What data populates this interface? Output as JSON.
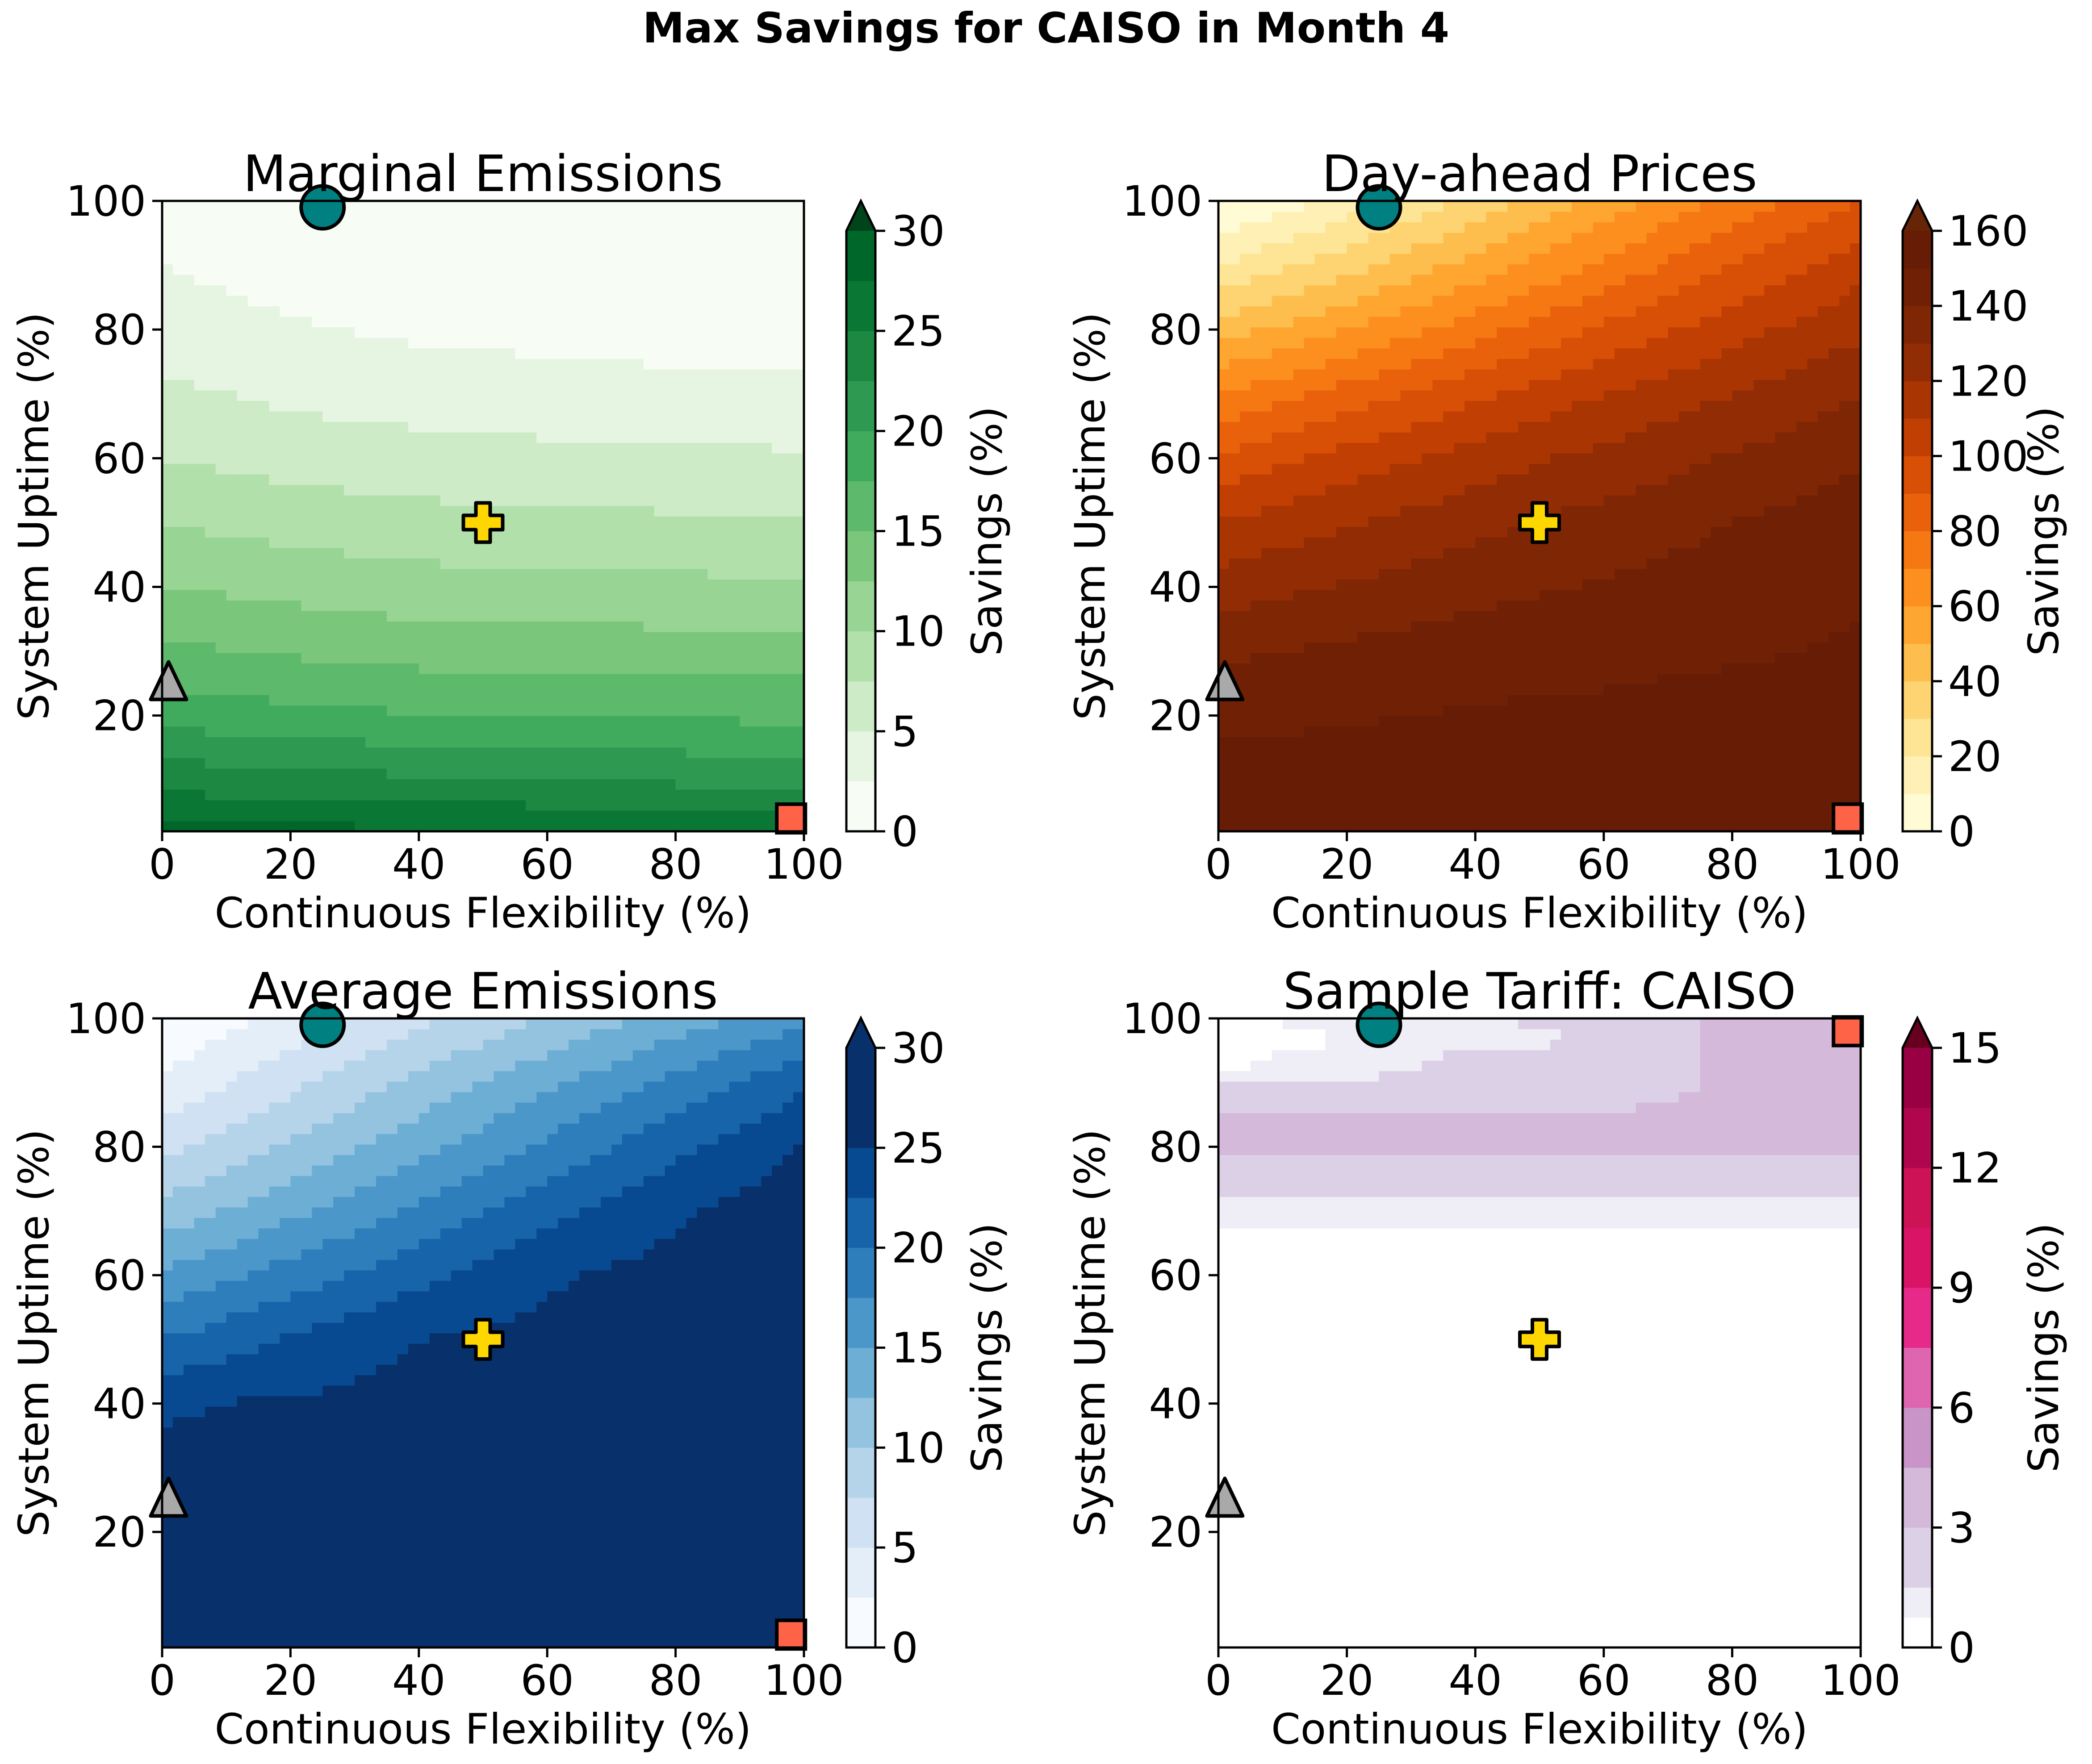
{
  "figure": {
    "title": "Max Savings for CAISO in Month 4"
  },
  "chart_data": [
    {
      "type": "heatmap",
      "title": "Marginal Emissions",
      "xlabel": "Continuous Flexibility (%)",
      "ylabel": "System Uptime (%)",
      "xlim": [
        0,
        100
      ],
      "ylim": [
        2,
        100
      ],
      "xticks": [
        "0",
        "20",
        "40",
        "60",
        "80",
        "100"
      ],
      "yticks": [
        "20",
        "40",
        "60",
        "80",
        "100"
      ],
      "x": [
        0,
        10,
        20,
        30,
        40,
        50,
        60,
        70,
        80,
        90,
        100
      ],
      "y": [
        2,
        10,
        20,
        30,
        40,
        50,
        60,
        70,
        80,
        90,
        100
      ],
      "z": [
        [
          28,
          28,
          28,
          28,
          27.6,
          27.6,
          27.5,
          27.3,
          27.2,
          27.1,
          27
        ],
        [
          24,
          23.7,
          23.4,
          23.1,
          22.9,
          22.7,
          22.5,
          22.3,
          22.1,
          21.9,
          21.6
        ],
        [
          19,
          18.6,
          18.2,
          17.9,
          17.7,
          17.5,
          17.4,
          17.3,
          17.2,
          17.1,
          17
        ],
        [
          15.5,
          15.1,
          14.7,
          14.3,
          14,
          13.9,
          13.8,
          13.7,
          13.6,
          13.5,
          13.5
        ],
        [
          12.5,
          12.1,
          11.7,
          11.3,
          11,
          10.8,
          10.7,
          10.7,
          10.6,
          10.5,
          10.5
        ],
        [
          10,
          9.5,
          9,
          8.7,
          8.4,
          8.2,
          8.1,
          8,
          7.9,
          7.8,
          7.8
        ],
        [
          7.5,
          7,
          6.5,
          6.2,
          6,
          5.8,
          5.7,
          5.6,
          5.5,
          5.4,
          5.3
        ],
        [
          5.5,
          5,
          4.5,
          4.1,
          3.9,
          3.7,
          3.5,
          3.4,
          3.3,
          3.2,
          3.1
        ],
        [
          4,
          3.4,
          2.8,
          2.4,
          2.1,
          1.9,
          1.8,
          1.6,
          1.5,
          1.5,
          1.5
        ],
        [
          2.5,
          1.9,
          1.3,
          0.9,
          0.6,
          0.4,
          0.3,
          0.2,
          0.1,
          0.1,
          0.1
        ],
        [
          1,
          0.5,
          0.1,
          0,
          0,
          0,
          0,
          0,
          0,
          0,
          0
        ]
      ],
      "levels": [
        0,
        2.5,
        5,
        7.5,
        10,
        12.5,
        15,
        17.5,
        20,
        22.5,
        25,
        27.5,
        30
      ],
      "colors": [
        "#f7fcf5",
        "#e6f5e1",
        "#cdebc6",
        "#b2e0ab",
        "#98d494",
        "#7ac67a",
        "#5db96b",
        "#40aa5d",
        "#2e9a51",
        "#1d8842",
        "#0b7734",
        "#00672b"
      ],
      "extend_color": "#00441b",
      "colorbar": {
        "label": "Savings (%)",
        "ticks": [
          "0",
          "5",
          "10",
          "15",
          "20",
          "25",
          "30"
        ],
        "range": [
          0,
          30
        ],
        "extend": "max"
      }
    },
    {
      "type": "heatmap",
      "title": "Day-ahead Prices",
      "xlabel": "Continuous Flexibility (%)",
      "ylabel": "System Uptime (%)",
      "xlim": [
        0,
        100
      ],
      "ylim": [
        2,
        100
      ],
      "xticks": [
        "0",
        "20",
        "40",
        "60",
        "80",
        "100"
      ],
      "yticks": [
        "20",
        "40",
        "60",
        "80",
        "100"
      ],
      "x": [
        0,
        10,
        20,
        30,
        40,
        50,
        60,
        70,
        80,
        90,
        100
      ],
      "y": [
        2,
        10,
        20,
        30,
        40,
        50,
        60,
        70,
        80,
        90,
        100
      ],
      "z": [
        [
          157,
          157,
          157,
          157,
          157,
          157,
          157,
          157,
          157,
          157,
          157
        ],
        [
          155,
          155,
          155,
          155,
          155,
          155,
          155,
          155,
          155,
          155,
          152
        ],
        [
          147,
          148,
          149,
          150,
          151,
          152,
          152,
          153,
          153,
          153,
          153
        ],
        [
          138,
          140,
          142,
          144,
          145,
          146,
          147,
          148,
          149,
          150,
          151
        ],
        [
          125,
          128,
          131,
          134,
          137,
          139,
          141,
          143,
          145,
          147,
          149
        ],
        [
          110,
          115,
          119,
          123,
          127,
          131,
          134,
          137,
          140,
          143,
          146
        ],
        [
          92,
          98,
          104,
          109,
          114,
          119,
          123,
          127,
          131,
          135,
          139
        ],
        [
          70,
          77,
          84,
          91,
          98,
          104,
          110,
          115,
          120,
          125,
          130
        ],
        [
          45,
          52,
          60,
          68,
          76,
          84,
          92,
          99,
          106,
          112,
          118
        ],
        [
          20,
          28,
          36,
          45,
          54,
          63,
          72,
          81,
          90,
          98,
          106
        ],
        [
          0,
          6,
          14,
          24,
          34,
          44,
          54,
          64,
          73,
          82,
          90
        ]
      ],
      "levels": [
        0,
        10,
        20,
        30,
        40,
        50,
        60,
        70,
        80,
        90,
        100,
        110,
        120,
        130,
        140,
        150,
        160
      ],
      "colors": [
        "#fffbd5",
        "#fff1b6",
        "#fee596",
        "#fed472",
        "#febe4d",
        "#fea630",
        "#fd8f1f",
        "#f67812",
        "#e9620b",
        "#d84f06",
        "#c23f03",
        "#a93503",
        "#922c04",
        "#7f2604",
        "#702005",
        "#661c05"
      ],
      "extend_color": "#662506",
      "colorbar": {
        "label": "Savings (%)",
        "ticks": [
          "0",
          "20",
          "40",
          "60",
          "80",
          "100",
          "120",
          "140",
          "160"
        ],
        "range": [
          0,
          160
        ],
        "extend": "max"
      }
    },
    {
      "type": "heatmap",
      "title": "Average Emissions",
      "xlabel": "Continuous Flexibility (%)",
      "ylabel": "System Uptime (%)",
      "xlim": [
        0,
        100
      ],
      "ylim": [
        2,
        100
      ],
      "xticks": [
        "0",
        "20",
        "40",
        "60",
        "80",
        "100"
      ],
      "yticks": [
        "20",
        "40",
        "60",
        "80",
        "100"
      ],
      "x": [
        0,
        10,
        20,
        30,
        40,
        50,
        60,
        70,
        80,
        90,
        100
      ],
      "y": [
        2,
        10,
        20,
        30,
        40,
        50,
        60,
        70,
        80,
        90,
        100
      ],
      "z": [
        [
          29,
          29,
          29,
          29,
          29,
          29,
          29,
          29,
          29,
          29,
          29
        ],
        [
          27.6,
          27.8,
          28,
          28.1,
          28.2,
          28.3,
          28.4,
          28.5,
          28.6,
          28.8,
          29
        ],
        [
          26.7,
          26.9,
          27.1,
          27.2,
          27.3,
          27.5,
          27.6,
          27.7,
          27.8,
          28,
          28.2
        ],
        [
          25.9,
          26,
          26.2,
          26.3,
          26.5,
          26.7,
          26.8,
          27,
          27.2,
          27.4,
          27.7
        ],
        [
          24.5,
          25.1,
          25.3,
          25.5,
          25.7,
          25.9,
          26.1,
          26.4,
          26.7,
          27,
          27.3
        ],
        [
          20,
          21.4,
          22.8,
          24.2,
          25,
          25.4,
          25.8,
          26.1,
          26.3,
          26.6,
          26.9
        ],
        [
          15.3,
          17,
          18.6,
          20.2,
          21.8,
          23.4,
          24.6,
          25.3,
          25.8,
          26.2,
          26.5
        ],
        [
          10.8,
          12.6,
          14.4,
          16.2,
          18,
          19.8,
          21.6,
          23.3,
          24.7,
          25.6,
          26.1
        ],
        [
          6.7,
          8.6,
          10.5,
          12.4,
          14.3,
          16.2,
          18.1,
          20,
          21.8,
          23.6,
          25.2
        ],
        [
          3,
          4.9,
          6.8,
          8.7,
          10.6,
          12.5,
          14.4,
          16.3,
          18.2,
          20.1,
          22
        ],
        [
          0,
          1.7,
          3.4,
          5.1,
          6.8,
          8.5,
          10.2,
          11.9,
          13.6,
          15.3,
          17
        ]
      ],
      "levels": [
        0,
        2.5,
        5,
        7.5,
        10,
        12.5,
        15,
        17.5,
        20,
        22.5,
        25,
        27.5,
        30
      ],
      "colors": [
        "#f7fbff",
        "#e3eef8",
        "#cfe1f2",
        "#b5d4e9",
        "#93c3df",
        "#6daed5",
        "#4b97c9",
        "#2f7ebc",
        "#1764ab",
        "#084a91",
        "#08306b",
        "#08306b"
      ],
      "extend_color": "#08306b",
      "colorbar": {
        "label": "Savings (%)",
        "ticks": [
          "0",
          "5",
          "10",
          "15",
          "20",
          "25",
          "30"
        ],
        "range": [
          0,
          30
        ],
        "extend": "max"
      }
    },
    {
      "type": "heatmap",
      "title": "Sample Tariff: CAISO",
      "xlabel": "Continuous Flexibility (%)",
      "ylabel": "System Uptime (%)",
      "xlim": [
        0,
        100
      ],
      "ylim": [
        2,
        100
      ],
      "xticks": [
        "0",
        "20",
        "40",
        "60",
        "80",
        "100"
      ],
      "yticks": [
        "20",
        "40",
        "60",
        "80",
        "100"
      ],
      "x": [
        0,
        10,
        20,
        30,
        40,
        50,
        60,
        70,
        80,
        90,
        100
      ],
      "y": [
        2,
        67,
        68,
        72,
        74,
        79,
        80,
        84,
        86,
        89,
        91,
        94,
        97,
        100
      ],
      "z": [
        [
          0,
          0,
          0,
          0,
          0,
          0,
          0,
          0,
          0,
          0,
          0
        ],
        [
          0,
          0,
          0,
          0,
          0,
          0,
          0,
          0,
          0,
          0,
          0
        ],
        [
          1,
          1,
          1,
          1,
          1,
          1,
          1,
          1,
          1,
          1,
          1
        ],
        [
          1,
          1,
          1,
          1,
          1,
          1,
          1,
          1,
          1,
          1,
          1
        ],
        [
          2,
          2,
          2,
          2,
          2,
          2,
          2,
          2,
          2,
          2,
          2
        ],
        [
          2,
          2,
          2,
          2,
          2,
          2,
          2,
          2,
          2,
          2,
          2
        ],
        [
          4,
          4,
          4,
          4,
          4,
          4,
          4,
          4,
          4,
          4,
          4
        ],
        [
          4,
          4,
          4,
          4,
          4,
          4,
          4,
          4,
          4,
          4,
          4
        ],
        [
          2,
          2,
          2,
          2,
          2,
          2,
          2,
          4,
          4,
          4,
          4
        ],
        [
          2,
          2,
          2,
          2,
          2,
          2,
          2,
          2,
          4,
          4,
          4
        ],
        [
          1,
          1,
          1,
          2,
          2,
          2,
          2,
          2,
          4,
          4,
          4
        ],
        [
          0,
          1,
          1,
          1,
          2,
          2,
          2,
          2,
          4,
          4,
          4
        ],
        [
          0,
          0,
          1,
          1,
          1,
          1,
          2,
          2,
          4,
          4,
          4
        ],
        [
          1,
          1,
          1,
          1,
          1,
          2,
          2,
          2,
          4,
          4,
          4
        ]
      ],
      "levels": [
        0,
        0.75,
        1.5,
        3,
        4.5,
        6,
        7.5,
        9,
        10.5,
        12,
        13.5,
        15
      ],
      "colors": [
        "#ffffff",
        "#efedf5",
        "#dcd0e6",
        "#d4b9da",
        "#c994c7",
        "#df65b0",
        "#e7298a",
        "#d91466",
        "#ce1256",
        "#b0064d",
        "#980043"
      ],
      "extend_color": "#67001f",
      "colorbar": {
        "label": "Savings (%)",
        "ticks": [
          "0",
          "3",
          "6",
          "9",
          "12",
          "15"
        ],
        "range": [
          0,
          15
        ],
        "extend": "max"
      }
    }
  ],
  "markers": [
    {
      "name": "teal-circle-marker",
      "shape": "circle",
      "x": 25,
      "y": 99,
      "color": "#008080"
    },
    {
      "name": "gold-plus-marker",
      "shape": "plus",
      "x": 50,
      "y": 50,
      "color": "#ffd700"
    },
    {
      "name": "gray-triangle-marker",
      "shape": "triangle",
      "x": 1,
      "y": 25,
      "color": "#a9a9a9"
    },
    {
      "name": "tomato-square-marker",
      "shape": "square",
      "x": 98,
      "y": 4,
      "color": "#ff6347"
    },
    {
      "name": "tomato-square-marker-tariff",
      "shape": "square",
      "x": 98,
      "y": 98,
      "color": "#ff6347"
    }
  ],
  "panel_markers": [
    [
      "teal-circle-marker",
      "gold-plus-marker",
      "gray-triangle-marker",
      "tomato-square-marker"
    ],
    [
      "teal-circle-marker",
      "gold-plus-marker",
      "gray-triangle-marker",
      "tomato-square-marker"
    ],
    [
      "teal-circle-marker",
      "gold-plus-marker",
      "gray-triangle-marker",
      "tomato-square-marker"
    ],
    [
      "teal-circle-marker",
      "gold-plus-marker",
      "gray-triangle-marker",
      "tomato-square-marker-tariff"
    ]
  ]
}
